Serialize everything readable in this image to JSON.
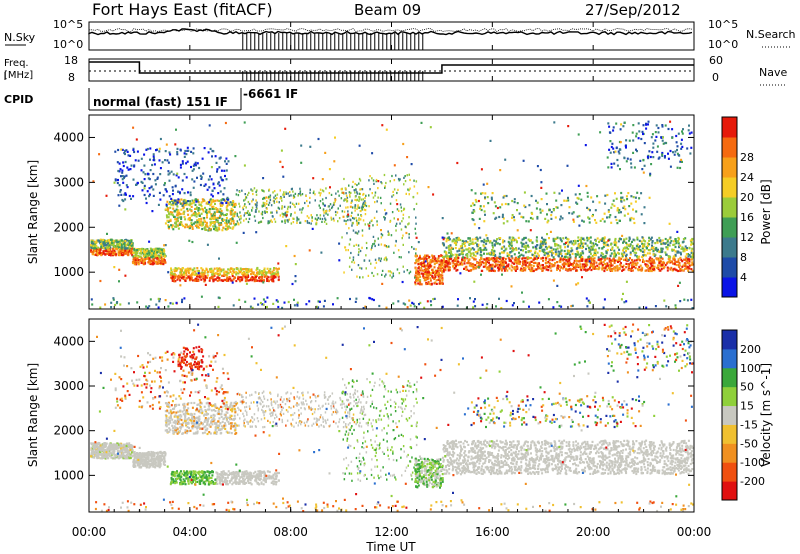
{
  "header": {
    "station": "Fort Hays East (fitACF)",
    "beam": "Beam 09",
    "date": "27/Sep/2012"
  },
  "top_panels": {
    "nsky_label": "N.Sky",
    "nsky_ticks": [
      "10^5",
      "10^0"
    ],
    "nsearch_label": "N.Search",
    "nsearch_ticks": [
      "10^5",
      "10^0"
    ],
    "freq_label_1": "Freq.",
    "freq_label_2": "[MHz]",
    "freq_ticks": [
      "18",
      "8"
    ],
    "nave_label": "Nave",
    "nave_ticks": [
      "60",
      "0"
    ],
    "cpid_label": "CPID",
    "cpid_1": "normal (fast) 151 IF",
    "cpid_2": "-6661 IF"
  },
  "colors": {
    "power": [
      "#0a14e6",
      "#1e4ba8",
      "#3c7a8c",
      "#3f9e55",
      "#9bcc3a",
      "#f5cd25",
      "#f7a01a",
      "#f56a10",
      "#e61a0a"
    ],
    "velocity": [
      "#1a2fa8",
      "#2a6fd0",
      "#3aa83a",
      "#8fd03a",
      "#c8c8c0",
      "#f0c030",
      "#f09020",
      "#f05010",
      "#e01010"
    ]
  },
  "chart_data": [
    {
      "type": "heatmap",
      "name": "power",
      "xlabel": "",
      "ylabel": "Slant Range [km]",
      "xlim": [
        0,
        24
      ],
      "ylim": [
        180,
        4500
      ],
      "yticks": [
        "1000",
        "2000",
        "3000",
        "4000"
      ],
      "colorbar_label": "Power [dB]",
      "colorbar_ticks": [
        "4",
        "8",
        "12",
        "16",
        "20",
        "24",
        "28"
      ],
      "echo_bands": [
        {
          "t": [
            0,
            1.7
          ],
          "range": [
            1450,
            1700
          ],
          "level": "high"
        },
        {
          "t": [
            1.7,
            3.0
          ],
          "range": [
            1250,
            1500
          ],
          "level": "high"
        },
        {
          "t": [
            3.0,
            5.8
          ],
          "range": [
            2000,
            2600
          ],
          "level": "mid"
        },
        {
          "t": [
            3.0,
            7.5
          ],
          "range": [
            850,
            1100
          ],
          "level": "high"
        },
        {
          "t": [
            12.9,
            14.0
          ],
          "range": [
            800,
            1300
          ],
          "level": "high"
        },
        {
          "t": [
            14.0,
            24.0
          ],
          "range": [
            1100,
            1750
          ],
          "level": "mid"
        }
      ]
    },
    {
      "type": "heatmap",
      "name": "velocity",
      "xlabel": "Time UT",
      "ylabel": "Slant Range [km]",
      "xlim": [
        0,
        24
      ],
      "ylim": [
        180,
        4500
      ],
      "xticks": [
        "00:00",
        "04:00",
        "08:00",
        "12:00",
        "16:00",
        "20:00",
        "00:00"
      ],
      "yticks": [
        "1000",
        "2000",
        "3000",
        "4000"
      ],
      "colorbar_label": "Velocity [m s^-1]",
      "colorbar_ticks": [
        "200",
        "100",
        "50",
        "15",
        "-15",
        "-50",
        "-100",
        "-200"
      ]
    }
  ]
}
